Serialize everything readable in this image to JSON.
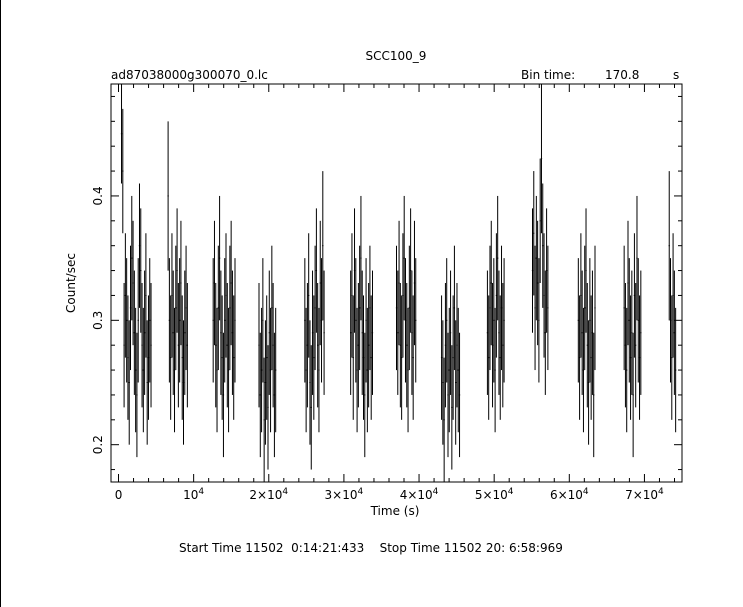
{
  "chart_data": {
    "type": "line",
    "title": "SCC100_9",
    "filename": "ad87038000g300070_0.lc",
    "bin_time_label": "Bin time:",
    "bin_time_value": "170.8",
    "bin_time_unit": "s",
    "xlabel": "Time (s)",
    "ylabel": "Count/sec",
    "xlim": [
      -1000,
      75000
    ],
    "ylim": [
      0.17,
      0.49
    ],
    "x_ticks": [
      {
        "v": 0,
        "base": "0",
        "exp": ""
      },
      {
        "v": 10000,
        "base": "10",
        "exp": "4"
      },
      {
        "v": 20000,
        "base": "2×10",
        "exp": "4"
      },
      {
        "v": 30000,
        "base": "3×10",
        "exp": "4"
      },
      {
        "v": 40000,
        "base": "4×10",
        "exp": "4"
      },
      {
        "v": 50000,
        "base": "5×10",
        "exp": "4"
      },
      {
        "v": 60000,
        "base": "6×10",
        "exp": "4"
      },
      {
        "v": 70000,
        "base": "7×10",
        "exp": "4"
      }
    ],
    "y_ticks": [
      {
        "v": 0.2,
        "label": "0.2"
      },
      {
        "v": 0.3,
        "label": "0.3"
      },
      {
        "v": 0.4,
        "label": "0.4"
      }
    ],
    "bin_width": 170.8,
    "segments": [
      {
        "t_start": 400,
        "values": [
          0.45,
          0.42,
          0.28,
          0.32,
          0.3,
          0.27,
          0.25,
          0.31,
          0.35,
          0.33,
          0.29,
          0.26,
          0.24,
          0.3,
          0.36,
          0.34,
          0.28,
          0.26,
          0.29,
          0.32,
          0.25,
          0.27,
          0.3,
          0.28
        ],
        "errors": [
          0.04,
          0.05,
          0.05,
          0.05,
          0.05,
          0.05,
          0.05,
          0.05,
          0.05,
          0.05,
          0.05,
          0.05,
          0.05,
          0.05,
          0.05,
          0.05,
          0.05,
          0.05,
          0.05,
          0.05,
          0.05,
          0.05,
          0.05,
          0.05
        ]
      },
      {
        "t_start": 6600,
        "values": [
          0.4,
          0.3,
          0.27,
          0.32,
          0.29,
          0.26,
          0.31,
          0.34,
          0.28,
          0.3,
          0.33,
          0.27,
          0.25,
          0.29,
          0.31,
          0.28
        ],
        "errors": [
          0.06,
          0.05,
          0.05,
          0.05,
          0.05,
          0.05,
          0.05,
          0.05,
          0.05,
          0.05,
          0.05,
          0.05,
          0.05,
          0.05,
          0.05,
          0.05
        ]
      },
      {
        "t_start": 12600,
        "values": [
          0.3,
          0.33,
          0.28,
          0.26,
          0.31,
          0.35,
          0.29,
          0.27,
          0.24,
          0.3,
          0.32,
          0.28,
          0.26,
          0.31,
          0.33,
          0.29,
          0.27,
          0.3
        ],
        "errors": [
          0.05,
          0.05,
          0.05,
          0.05,
          0.05,
          0.05,
          0.05,
          0.05,
          0.05,
          0.05,
          0.05,
          0.05,
          0.05,
          0.05,
          0.05,
          0.05,
          0.05,
          0.05
        ]
      },
      {
        "t_start": 18700,
        "values": [
          0.28,
          0.24,
          0.26,
          0.3,
          0.22,
          0.25,
          0.27,
          0.23,
          0.29,
          0.26,
          0.31,
          0.28,
          0.24,
          0.26
        ],
        "errors": [
          0.05,
          0.05,
          0.05,
          0.05,
          0.05,
          0.05,
          0.05,
          0.05,
          0.05,
          0.05,
          0.05,
          0.05,
          0.05,
          0.05
        ]
      },
      {
        "t_start": 24800,
        "values": [
          0.3,
          0.26,
          0.28,
          0.32,
          0.25,
          0.23,
          0.29,
          0.27,
          0.31,
          0.34,
          0.28,
          0.26,
          0.33,
          0.3,
          0.36,
          0.29
        ],
        "errors": [
          0.05,
          0.05,
          0.05,
          0.05,
          0.05,
          0.05,
          0.05,
          0.05,
          0.05,
          0.05,
          0.05,
          0.05,
          0.05,
          0.05,
          0.06,
          0.05
        ]
      },
      {
        "t_start": 30900,
        "values": [
          0.29,
          0.32,
          0.27,
          0.34,
          0.3,
          0.26,
          0.28,
          0.31,
          0.35,
          0.29,
          0.27,
          0.24,
          0.3,
          0.26,
          0.28,
          0.31,
          0.27,
          0.29
        ],
        "errors": [
          0.05,
          0.05,
          0.05,
          0.05,
          0.05,
          0.05,
          0.05,
          0.05,
          0.05,
          0.05,
          0.05,
          0.05,
          0.05,
          0.05,
          0.05,
          0.05,
          0.05,
          0.05
        ]
      },
      {
        "t_start": 37000,
        "values": [
          0.31,
          0.29,
          0.33,
          0.28,
          0.27,
          0.32,
          0.35,
          0.3,
          0.28,
          0.26,
          0.31,
          0.34,
          0.29,
          0.27,
          0.33,
          0.3
        ],
        "errors": [
          0.05,
          0.05,
          0.05,
          0.05,
          0.05,
          0.05,
          0.05,
          0.05,
          0.05,
          0.05,
          0.05,
          0.05,
          0.05,
          0.05,
          0.05,
          0.05
        ]
      },
      {
        "t_start": 43000,
        "values": [
          0.27,
          0.25,
          0.22,
          0.28,
          0.3,
          0.24,
          0.26,
          0.29,
          0.23,
          0.27,
          0.31,
          0.25,
          0.28,
          0.26,
          0.24
        ],
        "errors": [
          0.05,
          0.05,
          0.05,
          0.05,
          0.05,
          0.05,
          0.05,
          0.05,
          0.05,
          0.05,
          0.05,
          0.05,
          0.05,
          0.05,
          0.05
        ]
      },
      {
        "t_start": 49100,
        "values": [
          0.29,
          0.27,
          0.31,
          0.33,
          0.28,
          0.3,
          0.26,
          0.32,
          0.35,
          0.29,
          0.27,
          0.31,
          0.28,
          0.3
        ],
        "errors": [
          0.05,
          0.05,
          0.05,
          0.05,
          0.05,
          0.05,
          0.05,
          0.05,
          0.05,
          0.05,
          0.05,
          0.05,
          0.05,
          0.05
        ]
      },
      {
        "t_start": 55100,
        "values": [
          0.34,
          0.37,
          0.31,
          0.35,
          0.33,
          0.3,
          0.38,
          0.43,
          0.36,
          0.32,
          0.29,
          0.34,
          0.31
        ],
        "errors": [
          0.05,
          0.05,
          0.05,
          0.05,
          0.05,
          0.05,
          0.05,
          0.06,
          0.05,
          0.05,
          0.05,
          0.05,
          0.05
        ]
      },
      {
        "t_start": 61200,
        "values": [
          0.3,
          0.27,
          0.32,
          0.29,
          0.26,
          0.31,
          0.34,
          0.28,
          0.25,
          0.3,
          0.27,
          0.29,
          0.24,
          0.31
        ],
        "errors": [
          0.05,
          0.05,
          0.05,
          0.05,
          0.05,
          0.05,
          0.05,
          0.05,
          0.05,
          0.05,
          0.05,
          0.05,
          0.05,
          0.05
        ]
      },
      {
        "t_start": 67300,
        "values": [
          0.31,
          0.28,
          0.26,
          0.33,
          0.3,
          0.27,
          0.29,
          0.24,
          0.32,
          0.28,
          0.35,
          0.3,
          0.27,
          0.29
        ],
        "errors": [
          0.05,
          0.05,
          0.05,
          0.05,
          0.05,
          0.05,
          0.05,
          0.05,
          0.05,
          0.05,
          0.05,
          0.05,
          0.05,
          0.05
        ]
      },
      {
        "t_start": 73300,
        "values": [
          0.36,
          0.3,
          0.27,
          0.32,
          0.29,
          0.26
        ],
        "errors": [
          0.06,
          0.05,
          0.05,
          0.05,
          0.05,
          0.05
        ]
      }
    ]
  },
  "footer": {
    "start_label": "Start Time 11502  0:14:21:433",
    "stop_label": "Stop Time 11502 20: 6:58:969"
  }
}
